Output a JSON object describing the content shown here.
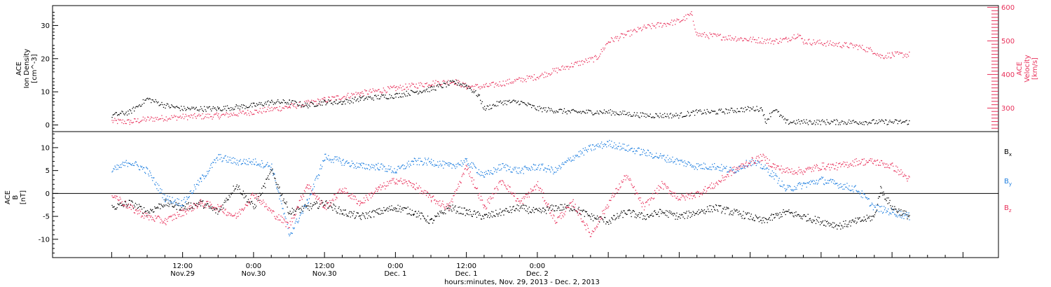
{
  "chart_data": [
    {
      "type": "scatter",
      "panel": "top",
      "ylabel_lines": [
        "ACE",
        "Ion Density",
        "[cm^-3]"
      ],
      "y2label_lines": [
        "ACE",
        "Velocity",
        "[km/s]"
      ],
      "ylim": [
        -2,
        36
      ],
      "y2lim": [
        230,
        605
      ],
      "yticks": [
        0,
        10,
        20,
        30
      ],
      "y2ticks": [
        300,
        400,
        500,
        600
      ],
      "colors": {
        "density": "#000000",
        "velocity": "#e8305a"
      },
      "series": [
        {
          "name": "",
          "axis": "left",
          "color": "#000000",
          "points": [
            [
              0,
              3
            ],
            [
              3,
              4
            ],
            [
              6,
              8
            ],
            [
              9,
              6
            ],
            [
              12,
              5
            ],
            [
              18,
              5
            ],
            [
              24,
              6
            ],
            [
              27,
              7
            ],
            [
              30,
              7
            ],
            [
              33,
              6
            ],
            [
              36,
              7
            ],
            [
              39,
              7
            ],
            [
              42,
              8
            ],
            [
              48,
              9
            ],
            [
              54,
              11
            ],
            [
              58,
              13
            ],
            [
              60,
              12
            ],
            [
              62,
              9
            ],
            [
              63,
              5
            ],
            [
              66,
              7
            ],
            [
              69,
              7
            ],
            [
              72,
              5
            ],
            [
              78,
              4
            ],
            [
              84,
              4
            ],
            [
              90,
              3
            ],
            [
              96,
              3
            ],
            [
              99,
              4
            ],
            [
              102,
              4
            ],
            [
              108,
              5
            ],
            [
              110,
              5
            ],
            [
              110.5,
              1
            ],
            [
              112,
              5
            ],
            [
              114,
              1
            ],
            [
              120,
              1
            ],
            [
              126,
              1
            ],
            [
              132,
              1
            ],
            [
              135,
              1
            ]
          ]
        },
        {
          "name": "",
          "axis": "right",
          "color": "#e8305a",
          "points": [
            [
              0,
              262
            ],
            [
              3,
              260
            ],
            [
              6,
              268
            ],
            [
              9,
              272
            ],
            [
              12,
              275
            ],
            [
              18,
              278
            ],
            [
              24,
              290
            ],
            [
              30,
              305
            ],
            [
              36,
              325
            ],
            [
              42,
              345
            ],
            [
              48,
              360
            ],
            [
              54,
              375
            ],
            [
              58,
              380
            ],
            [
              60,
              365
            ],
            [
              63,
              365
            ],
            [
              66,
              375
            ],
            [
              72,
              395
            ],
            [
              78,
              430
            ],
            [
              82,
              450
            ],
            [
              84,
              500
            ],
            [
              87,
              520
            ],
            [
              90,
              540
            ],
            [
              93,
              550
            ],
            [
              96,
              560
            ],
            [
              98,
              580
            ],
            [
              99,
              520
            ],
            [
              102,
              515
            ],
            [
              108,
              505
            ],
            [
              112,
              500
            ],
            [
              114,
              505
            ],
            [
              116,
              520
            ],
            [
              117,
              500
            ],
            [
              120,
              495
            ],
            [
              126,
              485
            ],
            [
              129,
              470
            ],
            [
              130,
              455
            ],
            [
              132,
              460
            ],
            [
              135,
              460
            ]
          ]
        }
      ]
    },
    {
      "type": "scatter",
      "panel": "bottom",
      "ylabel_lines": [
        "ACE",
        "B",
        "[nT]"
      ],
      "ylim": [
        -14,
        13.5
      ],
      "yticks": [
        -10,
        -5,
        0,
        5,
        10
      ],
      "zero_line": true,
      "legend": [
        {
          "name": "B_x",
          "base": "B",
          "sub": "x",
          "color": "#000000"
        },
        {
          "name": "B_y",
          "base": "B",
          "sub": "y",
          "color": "#1f7fe0"
        },
        {
          "name": "B_z",
          "base": "B",
          "sub": "z",
          "color": "#e8305a"
        }
      ],
      "series": [
        {
          "name": "B_x",
          "color": "#000000",
          "points": [
            [
              0,
              -3
            ],
            [
              3,
              -2
            ],
            [
              6,
              -4
            ],
            [
              9,
              -2
            ],
            [
              12,
              -3
            ],
            [
              15,
              -2
            ],
            [
              18,
              -4
            ],
            [
              21,
              2
            ],
            [
              24,
              -3
            ],
            [
              27,
              5
            ],
            [
              30,
              -4
            ],
            [
              33,
              -3
            ],
            [
              36,
              -2
            ],
            [
              39,
              -4
            ],
            [
              42,
              -5
            ],
            [
              45,
              -4
            ],
            [
              48,
              -3
            ],
            [
              51,
              -4
            ],
            [
              54,
              -6
            ],
            [
              57,
              -3
            ],
            [
              60,
              -4
            ],
            [
              63,
              -5
            ],
            [
              66,
              -4
            ],
            [
              69,
              -3
            ],
            [
              72,
              -4
            ],
            [
              75,
              -3
            ],
            [
              78,
              -3
            ],
            [
              81,
              -5
            ],
            [
              84,
              -6
            ],
            [
              87,
              -4
            ],
            [
              90,
              -5
            ],
            [
              93,
              -4
            ],
            [
              96,
              -5
            ],
            [
              99,
              -4
            ],
            [
              102,
              -3
            ],
            [
              105,
              -4
            ],
            [
              108,
              -5
            ],
            [
              110,
              -6
            ],
            [
              112,
              -5
            ],
            [
              114,
              -4
            ],
            [
              117,
              -5
            ],
            [
              120,
              -6
            ],
            [
              123,
              -7
            ],
            [
              126,
              -6
            ],
            [
              129,
              -5
            ],
            [
              130,
              1
            ],
            [
              132,
              -3
            ],
            [
              135,
              -5
            ]
          ]
        },
        {
          "name": "B_y",
          "color": "#1f7fe0",
          "points": [
            [
              0,
              5
            ],
            [
              3,
              7
            ],
            [
              6,
              5
            ],
            [
              9,
              -1
            ],
            [
              12,
              -2
            ],
            [
              15,
              3
            ],
            [
              18,
              8
            ],
            [
              21,
              7
            ],
            [
              24,
              7
            ],
            [
              27,
              6
            ],
            [
              30,
              -9
            ],
            [
              33,
              -2
            ],
            [
              36,
              8
            ],
            [
              39,
              7
            ],
            [
              42,
              6
            ],
            [
              45,
              6
            ],
            [
              48,
              5
            ],
            [
              51,
              7
            ],
            [
              54,
              7
            ],
            [
              57,
              6
            ],
            [
              60,
              7
            ],
            [
              63,
              4
            ],
            [
              66,
              6
            ],
            [
              69,
              5
            ],
            [
              72,
              6
            ],
            [
              75,
              5
            ],
            [
              78,
              8
            ],
            [
              81,
              10
            ],
            [
              84,
              11
            ],
            [
              87,
              10
            ],
            [
              90,
              9
            ],
            [
              93,
              8
            ],
            [
              96,
              7
            ],
            [
              99,
              6
            ],
            [
              102,
              6
            ],
            [
              105,
              5
            ],
            [
              108,
              7
            ],
            [
              110,
              6
            ],
            [
              112,
              4
            ],
            [
              114,
              1
            ],
            [
              117,
              2
            ],
            [
              120,
              3
            ],
            [
              123,
              2
            ],
            [
              126,
              1
            ],
            [
              129,
              -3
            ],
            [
              132,
              -4
            ],
            [
              135,
              -5
            ]
          ]
        },
        {
          "name": "B_z",
          "color": "#e8305a",
          "points": [
            [
              0,
              0
            ],
            [
              3,
              -3
            ],
            [
              6,
              -5
            ],
            [
              9,
              -6
            ],
            [
              12,
              -4
            ],
            [
              15,
              -2
            ],
            [
              18,
              -3
            ],
            [
              21,
              -5
            ],
            [
              24,
              0
            ],
            [
              27,
              -4
            ],
            [
              30,
              -7
            ],
            [
              33,
              2
            ],
            [
              36,
              -3
            ],
            [
              39,
              1
            ],
            [
              42,
              -2
            ],
            [
              45,
              1
            ],
            [
              48,
              3
            ],
            [
              51,
              2
            ],
            [
              54,
              -1
            ],
            [
              57,
              -3
            ],
            [
              60,
              6
            ],
            [
              63,
              -3
            ],
            [
              66,
              3
            ],
            [
              69,
              -2
            ],
            [
              72,
              2
            ],
            [
              75,
              -6
            ],
            [
              78,
              -2
            ],
            [
              81,
              -9
            ],
            [
              84,
              -2
            ],
            [
              87,
              4
            ],
            [
              90,
              -3
            ],
            [
              93,
              2
            ],
            [
              96,
              -1
            ],
            [
              99,
              0
            ],
            [
              102,
              2
            ],
            [
              105,
              5
            ],
            [
              108,
              7
            ],
            [
              110,
              8
            ],
            [
              112,
              6
            ],
            [
              114,
              5
            ],
            [
              117,
              5
            ],
            [
              120,
              6
            ],
            [
              123,
              6
            ],
            [
              126,
              7
            ],
            [
              129,
              7
            ],
            [
              132,
              6
            ],
            [
              135,
              3
            ]
          ]
        }
      ]
    }
  ],
  "x_axis": {
    "range_hours": [
      -10,
      150
    ],
    "ticks": [
      {
        "hour": 12,
        "time": "12:00",
        "date": "Nov.29"
      },
      {
        "hour": 24,
        "time": "0:00",
        "date": "Nov.30"
      },
      {
        "hour": 36,
        "time": "12:00",
        "date": "Nov.30"
      },
      {
        "hour": 48,
        "time": "0:00",
        "date": "Dec. 1"
      },
      {
        "hour": 60,
        "time": "12:00",
        "date": "Dec. 1"
      },
      {
        "hour": 72,
        "time": "0:00",
        "date": "Dec. 2"
      }
    ],
    "label": "hours:minutes, Nov. 29, 2013 - Dec. 2, 2013"
  }
}
